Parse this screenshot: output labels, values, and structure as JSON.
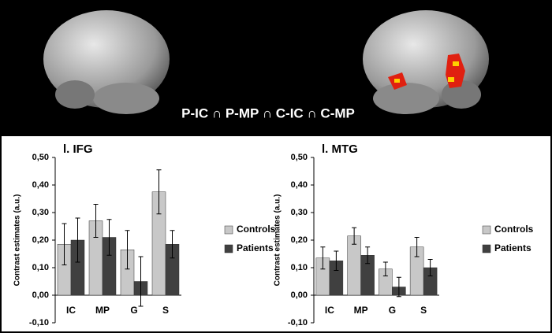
{
  "figure": {
    "caption": "P-IC ∩ P-MP ∩ C-IC ∩ C-MP"
  },
  "chart_data": [
    {
      "type": "bar",
      "title": "l. IFG",
      "y_label": "Contrast estimates (a.u.)",
      "categories": [
        "IC",
        "MP",
        "G",
        "S"
      ],
      "series": [
        {
          "name": "Controls",
          "color": "#c8c8c8",
          "values": [
            0.185,
            0.27,
            0.165,
            0.375
          ],
          "errors": [
            0.075,
            0.06,
            0.07,
            0.08
          ]
        },
        {
          "name": "Patients",
          "color": "#404040",
          "values": [
            0.2,
            0.21,
            0.05,
            0.185
          ],
          "errors": [
            0.08,
            0.065,
            0.09,
            0.05
          ]
        }
      ],
      "ylim": [
        -0.1,
        0.5
      ],
      "yticks": [
        {
          "value": -0.1,
          "label": "-0,10"
        },
        {
          "value": 0,
          "label": "0,00"
        },
        {
          "value": 0.1,
          "label": "0,10"
        },
        {
          "value": 0.2,
          "label": "0,20"
        },
        {
          "value": 0.3,
          "label": "0,30"
        },
        {
          "value": 0.4,
          "label": "0,40"
        },
        {
          "value": 0.5,
          "label": "0,50"
        }
      ],
      "legend": "right"
    },
    {
      "type": "bar",
      "title": "l. MTG",
      "y_label": "Contrast estimates (a.u.)",
      "categories": [
        "IC",
        "MP",
        "G",
        "S"
      ],
      "series": [
        {
          "name": "Controls",
          "color": "#c8c8c8",
          "values": [
            0.135,
            0.215,
            0.095,
            0.175
          ],
          "errors": [
            0.04,
            0.03,
            0.025,
            0.035
          ]
        },
        {
          "name": "Patients",
          "color": "#404040",
          "values": [
            0.125,
            0.145,
            0.03,
            0.1
          ],
          "errors": [
            0.035,
            0.03,
            0.035,
            0.03
          ]
        }
      ],
      "ylim": [
        -0.1,
        0.5
      ],
      "yticks": [
        {
          "value": -0.1,
          "label": "-0,10"
        },
        {
          "value": 0,
          "label": "0,00"
        },
        {
          "value": 0.1,
          "label": "0,10"
        },
        {
          "value": 0.2,
          "label": "0,20"
        },
        {
          "value": 0.3,
          "label": "0,30"
        },
        {
          "value": 0.4,
          "label": "0,40"
        },
        {
          "value": 0.5,
          "label": "0,50"
        }
      ],
      "legend": "right"
    }
  ]
}
